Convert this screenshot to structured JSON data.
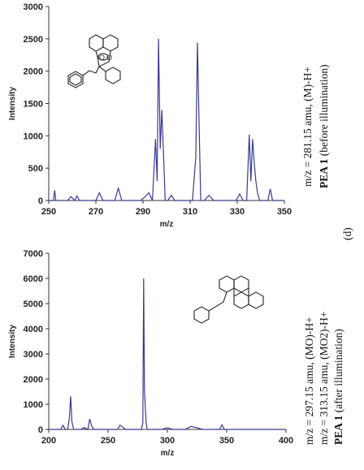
{
  "chart_data": [
    {
      "type": "line",
      "xlabel": "m/z",
      "ylabel": "Intensity",
      "xlim": [
        250,
        350
      ],
      "ylim": [
        0,
        3000
      ],
      "xticks": [
        250,
        270,
        290,
        310,
        330,
        350
      ],
      "yticks": [
        0,
        500,
        1000,
        1500,
        2000,
        2500,
        3000
      ],
      "grid": false,
      "color": "#3a3a8f",
      "x": [
        250,
        252,
        252.5,
        253,
        256,
        258,
        259.5,
        261,
        262,
        263,
        265,
        268,
        270,
        271.5,
        273,
        276,
        278,
        279.5,
        281,
        284,
        287,
        289,
        291,
        292.5,
        294,
        295.3,
        296,
        296.6,
        297.3,
        298,
        298.7,
        299.4,
        300.5,
        302,
        303.5,
        305,
        307,
        309,
        311,
        312.4,
        313.1,
        313.8,
        314.5,
        316,
        318,
        320,
        322,
        324,
        326,
        328,
        329.5,
        331,
        332.5,
        334,
        335.1,
        335.8,
        336.5,
        337.2,
        337.9,
        338.6,
        339.5,
        341,
        343,
        344,
        345,
        346,
        348,
        350
      ],
      "y": [
        0,
        0,
        160,
        0,
        0,
        0,
        60,
        0,
        70,
        0,
        0,
        0,
        0,
        120,
        0,
        0,
        0,
        190,
        0,
        0,
        0,
        0,
        60,
        120,
        0,
        950,
        300,
        2500,
        800,
        1400,
        740,
        0,
        0,
        80,
        0,
        0,
        0,
        0,
        0,
        680,
        2440,
        1200,
        0,
        0,
        80,
        0,
        0,
        0,
        0,
        0,
        0,
        100,
        0,
        0,
        1020,
        300,
        950,
        580,
        300,
        120,
        0,
        0,
        0,
        180,
        0,
        0,
        0,
        0
      ],
      "annotations": [],
      "caption_lines": [
        "m/z = 281.15 amu, (M)-H+",
        "PEA 1 (before illumination)"
      ]
    },
    {
      "type": "line",
      "xlabel": "m/z",
      "ylabel": "Intensity",
      "xlim": [
        200,
        400
      ],
      "ylim": [
        0,
        7000
      ],
      "xticks": [
        200,
        250,
        300,
        350,
        400
      ],
      "yticks": [
        0,
        1000,
        2000,
        3000,
        4000,
        5000,
        6000,
        7000
      ],
      "grid": false,
      "color": "#3a3a8f",
      "x": [
        200,
        205,
        210,
        212,
        214,
        216,
        217.5,
        218.5,
        219.5,
        221,
        224,
        227,
        230,
        233,
        234.5,
        236,
        238,
        240,
        245,
        250,
        255,
        258,
        260,
        265,
        270,
        275,
        278,
        279.3,
        280,
        280.7,
        281.4,
        282.1,
        283,
        286,
        290,
        295,
        300,
        305,
        310,
        315,
        320,
        330,
        340,
        344,
        346,
        348,
        350,
        352,
        360,
        370,
        380,
        390,
        400
      ],
      "y": [
        0,
        0,
        0,
        160,
        0,
        0,
        500,
        1320,
        300,
        0,
        0,
        0,
        70,
        0,
        420,
        150,
        0,
        0,
        0,
        0,
        0,
        0,
        170,
        0,
        0,
        0,
        0,
        250,
        6000,
        1550,
        900,
        250,
        0,
        0,
        0,
        0,
        60,
        0,
        0,
        0,
        120,
        0,
        0,
        0,
        180,
        0,
        0,
        0,
        0,
        0,
        0,
        0,
        0
      ],
      "annotations": [],
      "caption_lines": [
        "m/z = 297.15 amu, (MO)-H+",
        "m/z = 313.15 amu, (MO2)-H+",
        "PEA 1 (after illumination)"
      ]
    }
  ],
  "panel_label": "(d)",
  "captions": {
    "top_1": "m/z = 281.15 amu, (M)-H+",
    "top_2_bold": "PEA 1",
    "top_2_rest": " (before illumination)",
    "bottom_1": "m/z = 297.15 amu, (MO)-H+",
    "bottom_2": "m/z = 313.15 amu, (MO2)-H+",
    "bottom_3_bold": "PEA 1",
    "bottom_3_rest": " (after illumination)"
  }
}
